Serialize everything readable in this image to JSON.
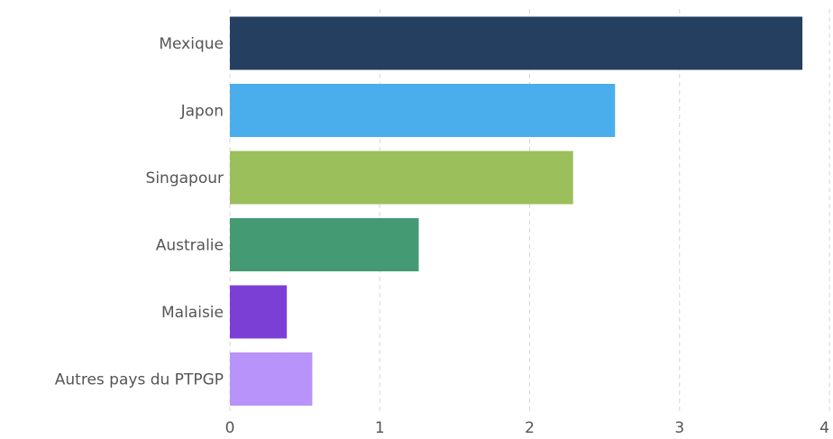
{
  "chart_data": {
    "type": "bar",
    "orientation": "horizontal",
    "categories": [
      "Mexique",
      "Japon",
      "Singapour",
      "Australie",
      "Malaisie",
      "Autres pays du PTPGP"
    ],
    "values": [
      3.82,
      2.57,
      2.29,
      1.26,
      0.38,
      0.55
    ],
    "colors": [
      "#243f60",
      "#49aeeb",
      "#9bbf5a",
      "#449a73",
      "#7c3fd6",
      "#b893fa"
    ],
    "xlim": [
      0,
      4
    ],
    "xticks": [
      "0",
      "1",
      "2",
      "3",
      "4"
    ],
    "grid": true,
    "title": "",
    "xlabel": "",
    "ylabel": ""
  }
}
